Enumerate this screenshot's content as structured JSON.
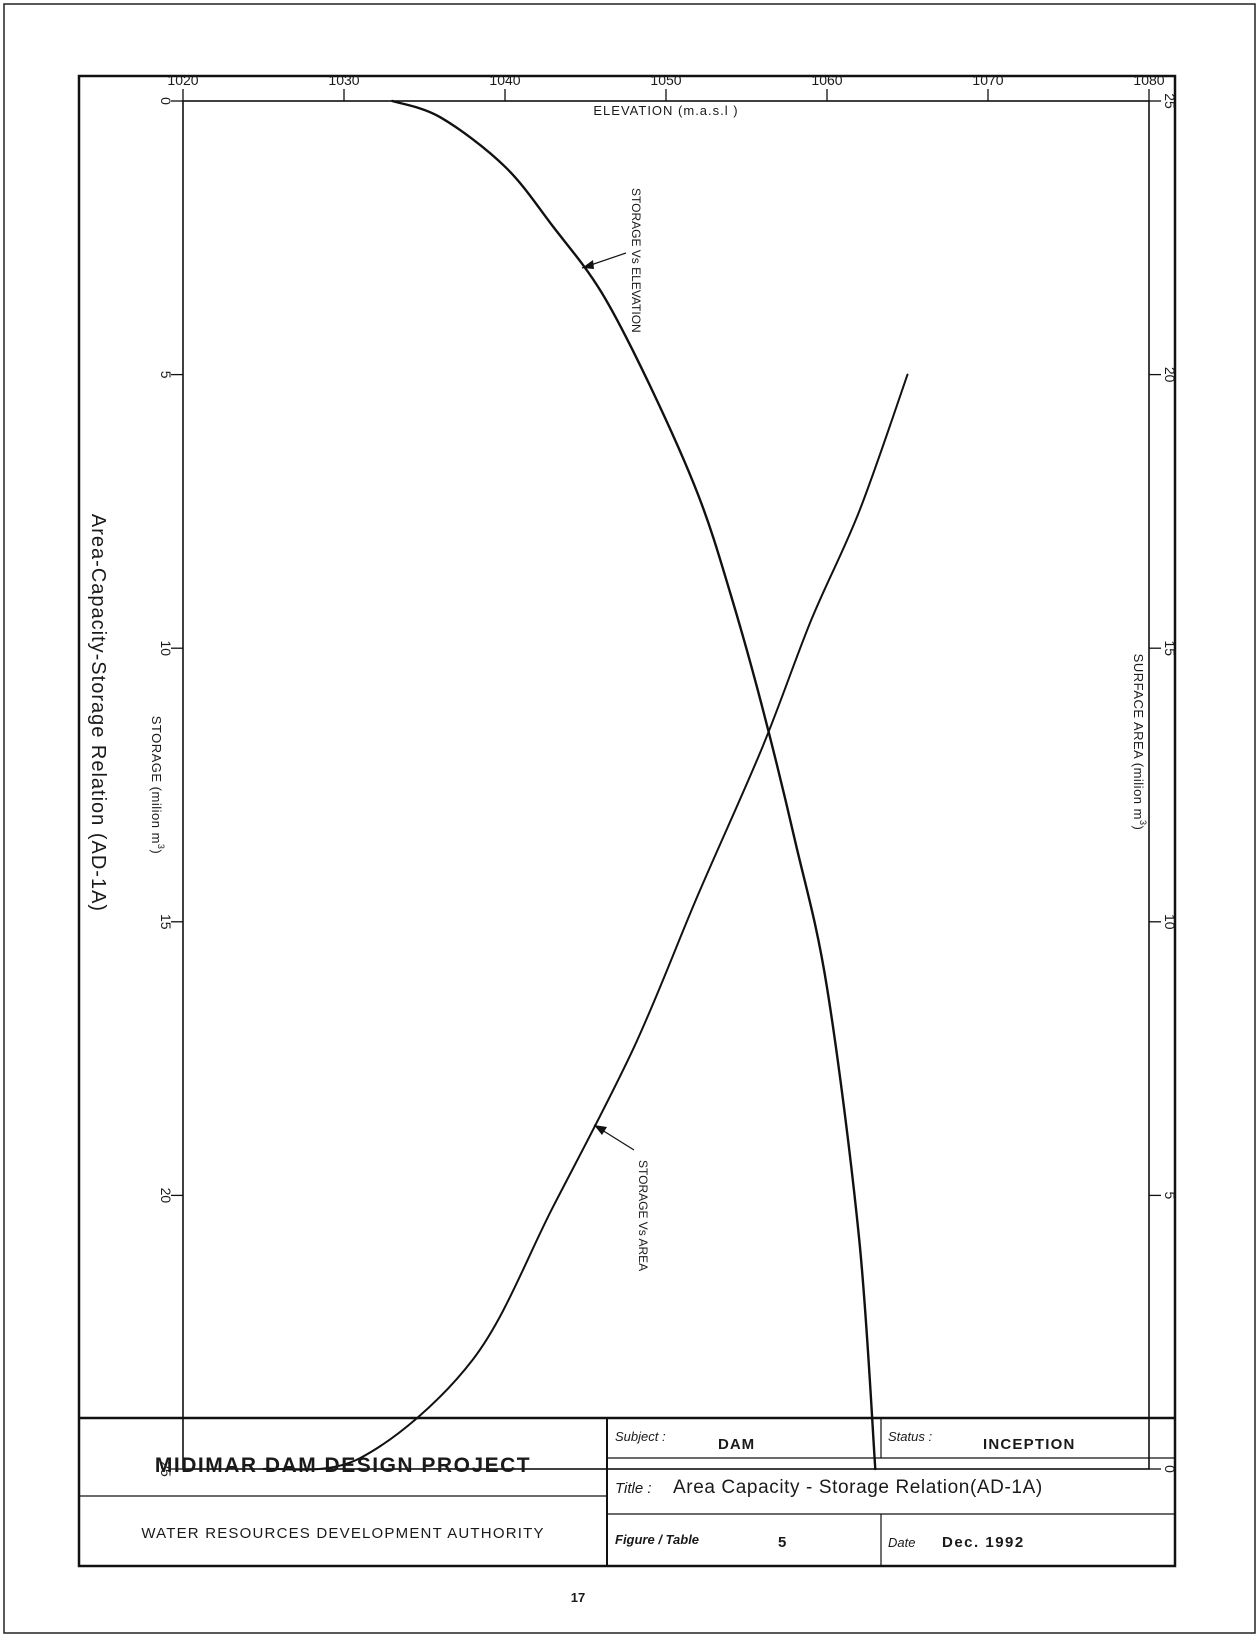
{
  "chart_data": {
    "type": "line",
    "title": "Area-Capacity-Storage Relation (AD-1A)",
    "orientation": "rotated",
    "x_axis": {
      "label": "ELEVATION (m.a.s.l )",
      "range": [
        1020,
        1080
      ],
      "ticks": [
        "1020",
        "1030",
        "1040",
        "1050",
        "1060",
        "1070",
        "1080"
      ]
    },
    "y_left": {
      "label": "STORAGE (milion m",
      "unit_sup": "3",
      "unit_close": ")",
      "range": [
        0,
        25
      ],
      "ticks": [
        "0",
        "5",
        "10",
        "15",
        "20",
        "25"
      ]
    },
    "y_right": {
      "label": "SURFACE AREA (milion m",
      "unit_sup": "3",
      "unit_close": ")",
      "range": [
        0,
        25
      ],
      "ticks": [
        "0",
        "5",
        "10",
        "15",
        "20",
        "25"
      ]
    },
    "grid": false,
    "series": [
      {
        "name": "STORAGE Vs ELEVATION",
        "axis": "left",
        "x": [
          1033,
          1036,
          1040,
          1043,
          1046,
          1049,
          1052,
          1054,
          1056,
          1058,
          1060,
          1062,
          1063
        ],
        "y": [
          0,
          0.3,
          1.2,
          2.3,
          3.5,
          5.2,
          7.2,
          9.0,
          11.1,
          13.5,
          16.2,
          20.8,
          25.0
        ]
      },
      {
        "name": "STORAGE Vs AREA",
        "axis": "left",
        "x": [
          1025,
          1031,
          1038,
          1043,
          1048,
          1052,
          1056,
          1059,
          1062,
          1065
        ],
        "y": [
          25,
          24.8,
          23.0,
          20.2,
          17.3,
          14.5,
          11.8,
          9.5,
          7.5,
          5.0
        ]
      }
    ],
    "annotations": [
      {
        "text": "STORAGE  Vs  ELEVATION"
      },
      {
        "text": "STORAGE  Vs  AREA"
      }
    ]
  },
  "title_block": {
    "project": "MIDIMAR DAM DESIGN PROJECT",
    "authority": "WATER RESOURCES DEVELOPMENT AUTHORITY",
    "subject_label": "Subject :",
    "subject_value": "DAM",
    "status_label": "Status :",
    "status_value": "INCEPTION",
    "title_label": "Title :",
    "title_value": "Area Capacity - Storage Relation(AD-1A)",
    "figure_label": "Figure / Table",
    "figure_value": "5",
    "date_label": "Date",
    "date_value": "Dec. 1992"
  },
  "page_number": "17"
}
